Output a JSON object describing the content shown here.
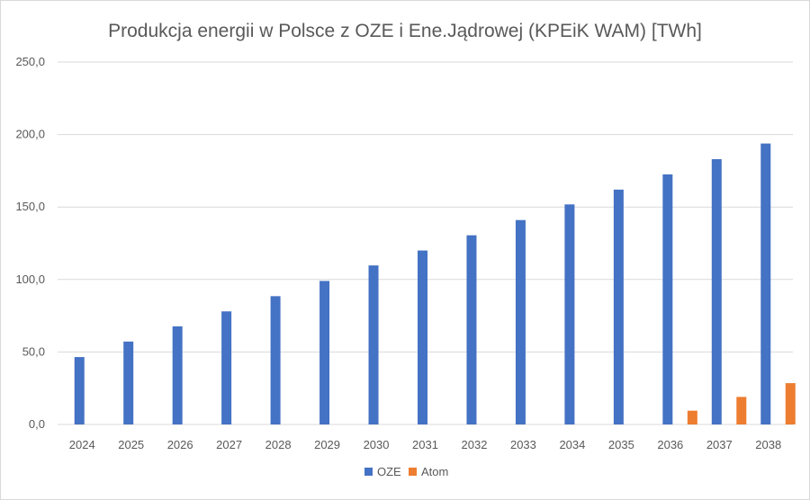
{
  "chart_data": {
    "type": "bar",
    "title": "Produkcja energii w Polsce z OZE i Ene.Jądrowej (KPEiK WAM)  [TWh]",
    "xlabel": "",
    "ylabel": "",
    "categories": [
      "2024",
      "2025",
      "2026",
      "2027",
      "2028",
      "2029",
      "2030",
      "2031",
      "2032",
      "2033",
      "2034",
      "2035",
      "2036",
      "2037",
      "2038"
    ],
    "series": [
      {
        "name": "OZE",
        "color": "#4472c4",
        "values": [
          46.5,
          57.2,
          67.7,
          78.0,
          88.5,
          99.0,
          109.7,
          120.0,
          130.5,
          141.0,
          151.8,
          162.0,
          172.5,
          183.0,
          193.8
        ]
      },
      {
        "name": "Atom",
        "color": "#ed7d31",
        "values": [
          0,
          0,
          0,
          0,
          0,
          0,
          0,
          0,
          0,
          0,
          0,
          0,
          9.5,
          19.0,
          28.5
        ]
      }
    ],
    "ylim": [
      0,
      250
    ],
    "yticks": [
      "0,0",
      "50,0",
      "100,0",
      "150,0",
      "200,0",
      "250,0"
    ],
    "grid": true,
    "legend": "bottom"
  }
}
